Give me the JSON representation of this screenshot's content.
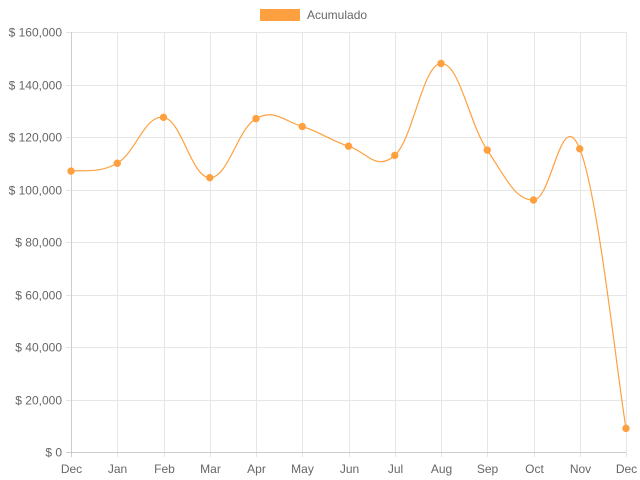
{
  "chart_data": {
    "type": "line",
    "title": "",
    "xlabel": "",
    "ylabel": "",
    "categories": [
      "Dec",
      "Jan",
      "Feb",
      "Mar",
      "Apr",
      "May",
      "Jun",
      "Jul",
      "Aug",
      "Sep",
      "Oct",
      "Nov",
      "Dec"
    ],
    "series": [
      {
        "name": "Acumulado",
        "color": "#ffa040",
        "values": [
          107000,
          110000,
          127500,
          104500,
          127000,
          124000,
          116500,
          113000,
          148000,
          115000,
          96000,
          115500,
          9000
        ]
      }
    ],
    "ylim": [
      0,
      160000
    ],
    "yticks": [
      0,
      20000,
      40000,
      60000,
      80000,
      100000,
      120000,
      140000,
      160000
    ],
    "ytick_labels": [
      "$ 0",
      "$ 20,000",
      "$ 40,000",
      "$ 60,000",
      "$ 80,000",
      "$ 100,000",
      "$ 120,000",
      "$ 140,000",
      "$ 160,000"
    ],
    "grid": true,
    "legend_position": "top-center",
    "curve": "smooth"
  }
}
